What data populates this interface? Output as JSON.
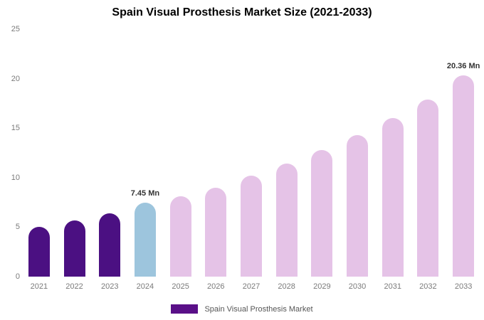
{
  "chart_data": {
    "type": "bar",
    "title": "Spain Visual Prosthesis Market Size (2021-2033)",
    "xlabel": "",
    "ylabel": "",
    "categories": [
      "2021",
      "2022",
      "2023",
      "2024",
      "2025",
      "2026",
      "2027",
      "2028",
      "2029",
      "2030",
      "2031",
      "2032",
      "2033"
    ],
    "values": [
      5.0,
      5.7,
      6.4,
      7.45,
      8.1,
      9.0,
      10.2,
      11.4,
      12.8,
      14.3,
      16.0,
      17.9,
      20.36
    ],
    "unit": "Mn",
    "ylim": [
      0,
      25
    ],
    "yticks": [
      0,
      5,
      10,
      15,
      20,
      25
    ],
    "grid": false,
    "bar_colors": [
      "#4B1082",
      "#4B1082",
      "#4B1082",
      "#9DC5DD",
      "#E5C3E7",
      "#E5C3E7",
      "#E5C3E7",
      "#E5C3E7",
      "#E5C3E7",
      "#E5C3E7",
      "#E5C3E7",
      "#E5C3E7",
      "#E5C3E7"
    ],
    "annotations": [
      {
        "category": "2024",
        "text": "7.45 Mn"
      },
      {
        "category": "2033",
        "text": "20.36 Mn"
      }
    ],
    "legend": [
      {
        "label": "Spain Visual Prosthesis Market",
        "color": "#5A1088"
      }
    ],
    "legend_position": "bottom-center"
  }
}
